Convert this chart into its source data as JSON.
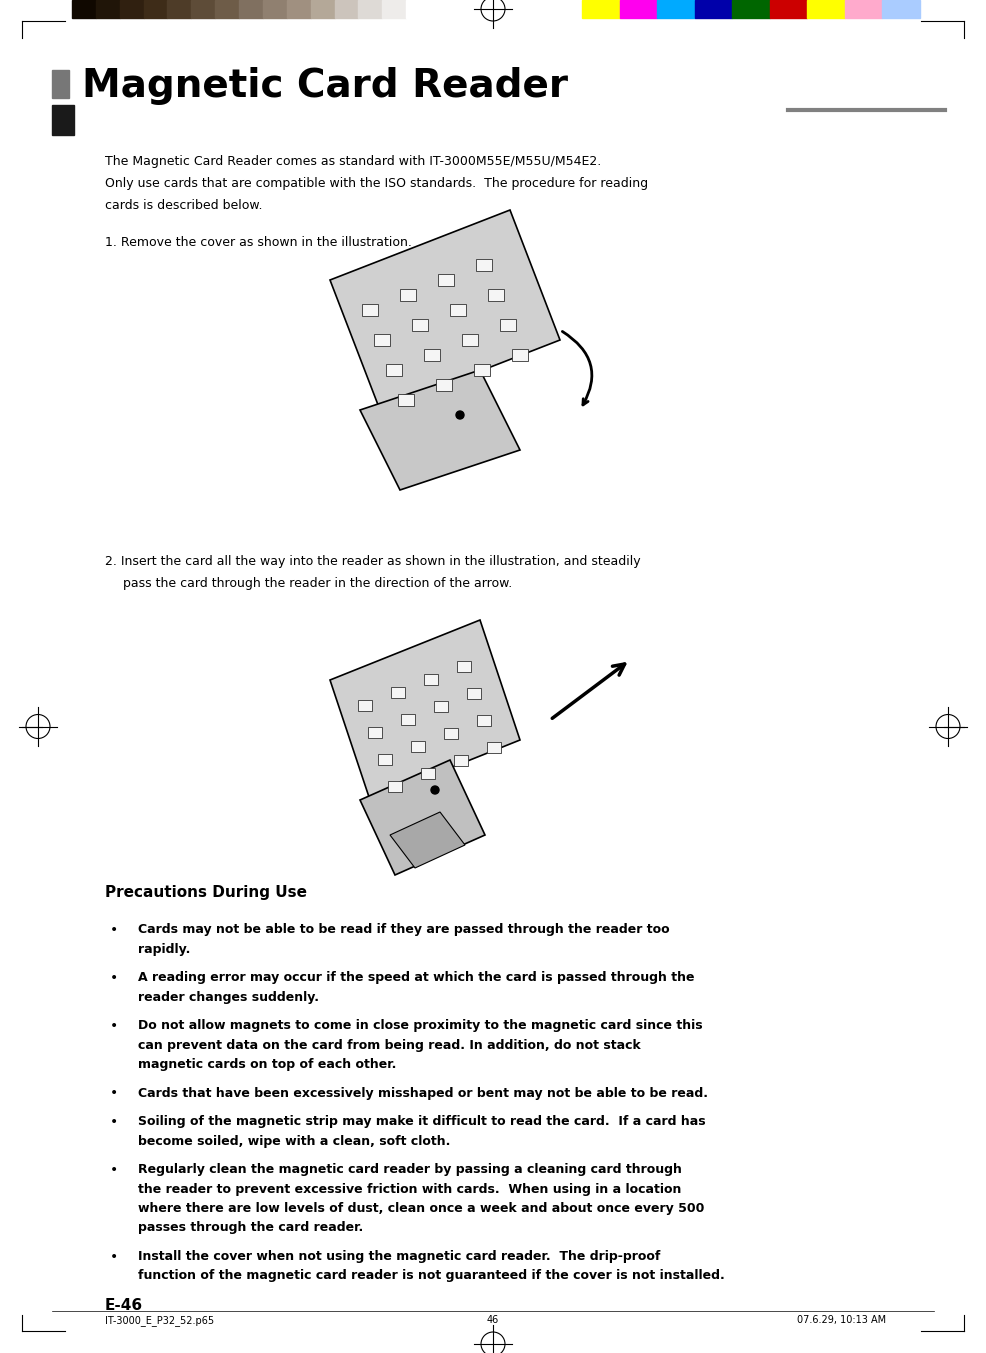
{
  "bg_color": "#ffffff",
  "page_width": 9.86,
  "page_height": 13.53,
  "title": "Magnetic Card Reader",
  "title_fontsize": 28,
  "title_color": "#000000",
  "body_fontsize": 9.0,
  "bullet_fontsize": 9.0,
  "section_title_fontsize": 11,
  "dark_gradient": [
    "#100800",
    "#201508",
    "#302010",
    "#3e2c18",
    "#4e3c28",
    "#5e4c38",
    "#6e5c48",
    "#807060",
    "#908070",
    "#a09080",
    "#b4a898",
    "#ccc4bc",
    "#dedad6",
    "#eeecea",
    "#ffffff"
  ],
  "cmyk_colors": [
    "#ffff00",
    "#ff00ee",
    "#00aaff",
    "#0000aa",
    "#006600",
    "#cc0000",
    "#ffff00",
    "#ffaacc",
    "#aaccff"
  ],
  "footer_left": "IT-3000_E_P32_52.p65",
  "footer_center": "46",
  "footer_right": "07.6.29, 10:13 AM",
  "page_num": "E-46",
  "body_text_lines": [
    "The Magnetic Card Reader comes as standard with IT-3000M55E/M55U/M54E2.",
    "Only use cards that are compatible with the ISO standards.  The procedure for reading",
    "cards is described below."
  ],
  "step1": "1. Remove the cover as shown in the illustration.",
  "step2_line1": "2. Insert the card all the way into the reader as shown in the illustration, and steadily",
  "step2_line2": "   pass the card through the reader in the direction of the arrow.",
  "section_title": "Precautions During Use",
  "bullet_lines": [
    [
      "Cards may not be able to be read if they are passed through the reader too",
      "rapidly."
    ],
    [
      "A reading error may occur if the speed at which the card is passed through the",
      "reader changes suddenly."
    ],
    [
      "Do not allow magnets to come in close proximity to the magnetic card since this",
      "can prevent data on the card from being read. In addition, do not stack",
      "magnetic cards on top of each other."
    ],
    [
      "Cards that have been excessively misshaped or bent may not be able to be read."
    ],
    [
      "Soiling of the magnetic strip may make it difficult to read the card.  If a card has",
      "become soiled, wipe with a clean, soft cloth."
    ],
    [
      "Regularly clean the magnetic card reader by passing a cleaning card through",
      "the reader to prevent excessive friction with cards.  When using in a location",
      "where there are low levels of dust, clean once a week and about once every 500",
      "passes through the card reader."
    ],
    [
      "Install the cover when not using the magnetic card reader.  The drip-proof",
      "function of the magnetic card reader is not guaranteed if the cover is not installed."
    ]
  ]
}
